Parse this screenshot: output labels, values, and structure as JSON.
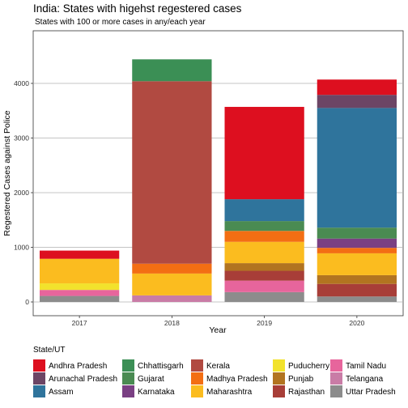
{
  "chart_data": {
    "type": "bar",
    "stacked": true,
    "title": "India: States with higehst regestered cases",
    "subtitle": "States with 100 or more cases in any/each year",
    "xlabel": "Year",
    "ylabel": "Regestered Cases against Police",
    "ylim": [
      -150,
      5100
    ],
    "yticks": [
      0,
      1000,
      2000,
      3000,
      4000
    ],
    "categories": [
      "2017",
      "2018",
      "2019",
      "2020"
    ],
    "grid": true,
    "legend_title": "State/UT",
    "legend_position": "bottom",
    "series": [
      {
        "name": "Uttar Pradesh",
        "color": "#8c8c8c",
        "values": [
          110,
          0,
          180,
          100
        ]
      },
      {
        "name": "Telangana",
        "color": "#c97ca6",
        "values": [
          0,
          120,
          0,
          0
        ]
      },
      {
        "name": "Tamil Nadu",
        "color": "#e7659c",
        "values": [
          110,
          0,
          210,
          0
        ]
      },
      {
        "name": "Rajasthan",
        "color": "#a83e38",
        "values": [
          0,
          0,
          180,
          230
        ]
      },
      {
        "name": "Punjab",
        "color": "#b27420",
        "values": [
          0,
          0,
          140,
          160
        ]
      },
      {
        "name": "Puducherry",
        "color": "#f2e22c",
        "values": [
          120,
          0,
          0,
          0
        ]
      },
      {
        "name": "Maharashtra",
        "color": "#fbbc1f",
        "values": [
          450,
          400,
          390,
          400
        ]
      },
      {
        "name": "Madhya Pradesh",
        "color": "#f36e13",
        "values": [
          0,
          180,
          200,
          100
        ]
      },
      {
        "name": "Kerala",
        "color": "#b14a41",
        "values": [
          0,
          3340,
          0,
          0
        ]
      },
      {
        "name": "Karnataka",
        "color": "#7a4083",
        "values": [
          0,
          0,
          0,
          170
        ]
      },
      {
        "name": "Gujarat",
        "color": "#4a8b52",
        "values": [
          0,
          0,
          180,
          200
        ]
      },
      {
        "name": "Chhattisgarh",
        "color": "#3b8f55",
        "values": [
          0,
          400,
          0,
          0
        ]
      },
      {
        "name": "Assam",
        "color": "#2f749c",
        "values": [
          0,
          0,
          400,
          2190
        ]
      },
      {
        "name": "Arunachal Pradesh",
        "color": "#6c4565",
        "values": [
          0,
          0,
          0,
          240
        ]
      },
      {
        "name": "Andhra Pradesh",
        "color": "#dd0f1f",
        "values": [
          150,
          0,
          1690,
          280
        ]
      }
    ],
    "legend_entries": [
      {
        "name": "Andhra Pradesh",
        "color": "#dd0f1f"
      },
      {
        "name": "Arunachal Pradesh",
        "color": "#6c4565"
      },
      {
        "name": "Assam",
        "color": "#2f749c"
      },
      {
        "name": "Chhattisgarh",
        "color": "#3b8f55"
      },
      {
        "name": "Gujarat",
        "color": "#4a8b52"
      },
      {
        "name": "Karnataka",
        "color": "#7a4083"
      },
      {
        "name": "Kerala",
        "color": "#b14a41"
      },
      {
        "name": "Madhya Pradesh",
        "color": "#f36e13"
      },
      {
        "name": "Maharashtra",
        "color": "#fbbc1f"
      },
      {
        "name": "Puducherry",
        "color": "#f2e22c"
      },
      {
        "name": "Punjab",
        "color": "#b27420"
      },
      {
        "name": "Rajasthan",
        "color": "#a83e38"
      },
      {
        "name": "Tamil Nadu",
        "color": "#e7659c"
      },
      {
        "name": "Telangana",
        "color": "#c97ca6"
      },
      {
        "name": "Uttar Pradesh",
        "color": "#8c8c8c"
      }
    ]
  }
}
